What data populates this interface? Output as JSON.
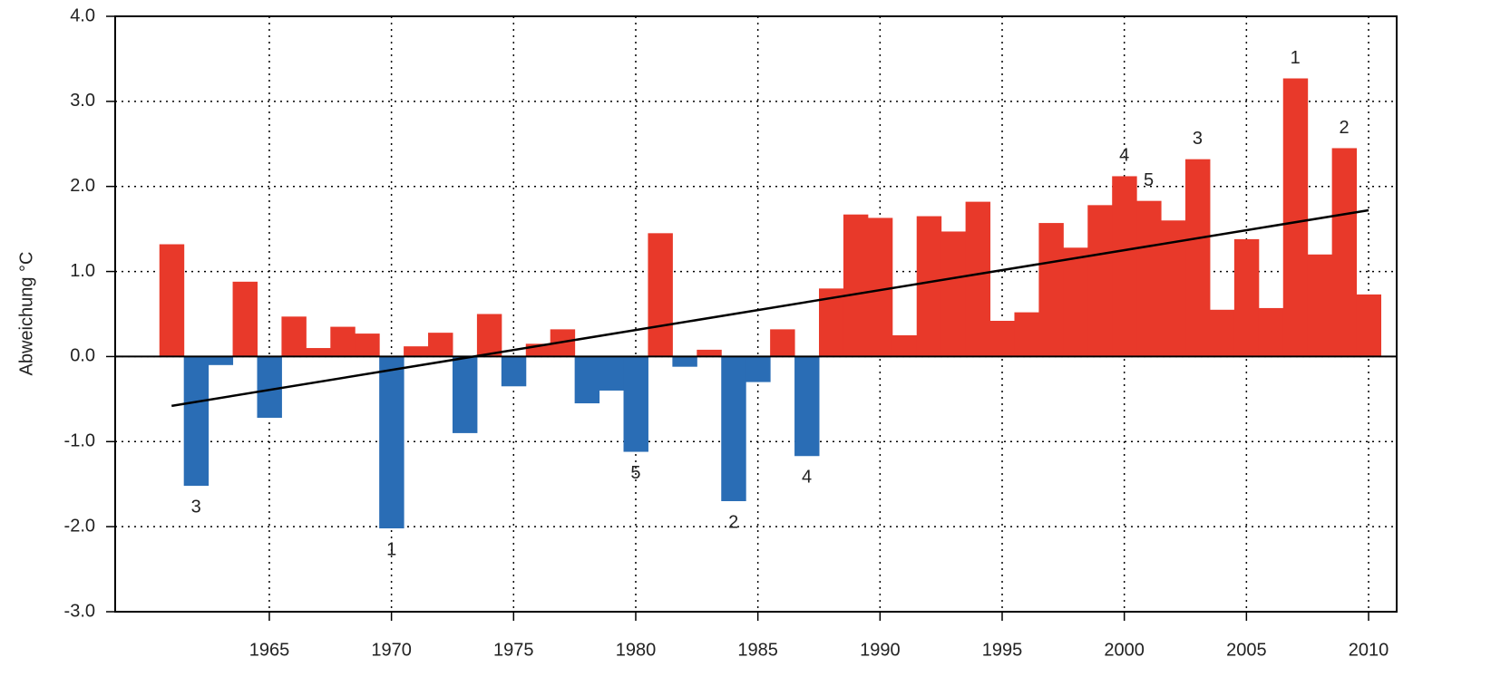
{
  "chart_data": {
    "type": "bar",
    "y_label": "Abweichung °C",
    "x": [
      1961,
      1962,
      1963,
      1964,
      1965,
      1966,
      1967,
      1968,
      1969,
      1970,
      1971,
      1972,
      1973,
      1974,
      1975,
      1976,
      1977,
      1978,
      1979,
      1980,
      1981,
      1982,
      1983,
      1984,
      1985,
      1986,
      1987,
      1988,
      1989,
      1990,
      1991,
      1992,
      1993,
      1994,
      1995,
      1996,
      1997,
      1998,
      1999,
      2000,
      2001,
      2002,
      2003,
      2004,
      2005,
      2006,
      2007,
      2008,
      2009,
      2010
    ],
    "values": [
      1.32,
      -1.52,
      -0.1,
      0.88,
      -0.72,
      0.47,
      0.1,
      0.35,
      0.27,
      -2.02,
      0.12,
      0.28,
      -0.9,
      0.5,
      -0.35,
      0.15,
      0.32,
      -0.55,
      -0.4,
      -1.12,
      1.45,
      -0.12,
      0.08,
      -1.7,
      -0.3,
      0.32,
      -1.17,
      0.8,
      1.67,
      1.63,
      0.25,
      1.65,
      1.47,
      1.82,
      0.42,
      0.52,
      1.57,
      1.28,
      1.78,
      2.12,
      1.83,
      1.6,
      2.32,
      0.55,
      1.38,
      0.57,
      3.27,
      1.2,
      2.45,
      0.73
    ],
    "colors": {
      "positive": "#e8392a",
      "negative": "#2a6db5"
    },
    "trend": {
      "x": [
        1961,
        2010
      ],
      "values": [
        -0.58,
        1.72
      ],
      "color": "#000000"
    },
    "annotations": [
      {
        "x": 1970,
        "text": "1"
      },
      {
        "x": 1984,
        "text": "2"
      },
      {
        "x": 1962,
        "text": "3"
      },
      {
        "x": 1987,
        "text": "4"
      },
      {
        "x": 1980,
        "text": "5"
      },
      {
        "x": 2007,
        "text": "1"
      },
      {
        "x": 2009,
        "text": "2"
      },
      {
        "x": 2003,
        "text": "3"
      },
      {
        "x": 2000,
        "text": "4"
      },
      {
        "x": 2001,
        "text": "5"
      }
    ],
    "xlim": [
      1958.69,
      2011.15
    ],
    "xticks": [
      1965,
      1970,
      1975,
      1980,
      1985,
      1990,
      1995,
      2000,
      2005,
      2010
    ],
    "ylim": [
      -3,
      4
    ],
    "yticks": [
      {
        "value": -3,
        "label": "-3.0"
      },
      {
        "value": -2,
        "label": "-2.0"
      },
      {
        "value": -1,
        "label": "-1.0"
      },
      {
        "value": 0,
        "label": "0.0"
      },
      {
        "value": 1,
        "label": "1.0"
      },
      {
        "value": 2,
        "label": "2.0"
      },
      {
        "value": 3,
        "label": "3.0"
      },
      {
        "value": 4,
        "label": "4.0"
      }
    ],
    "grid": true
  }
}
